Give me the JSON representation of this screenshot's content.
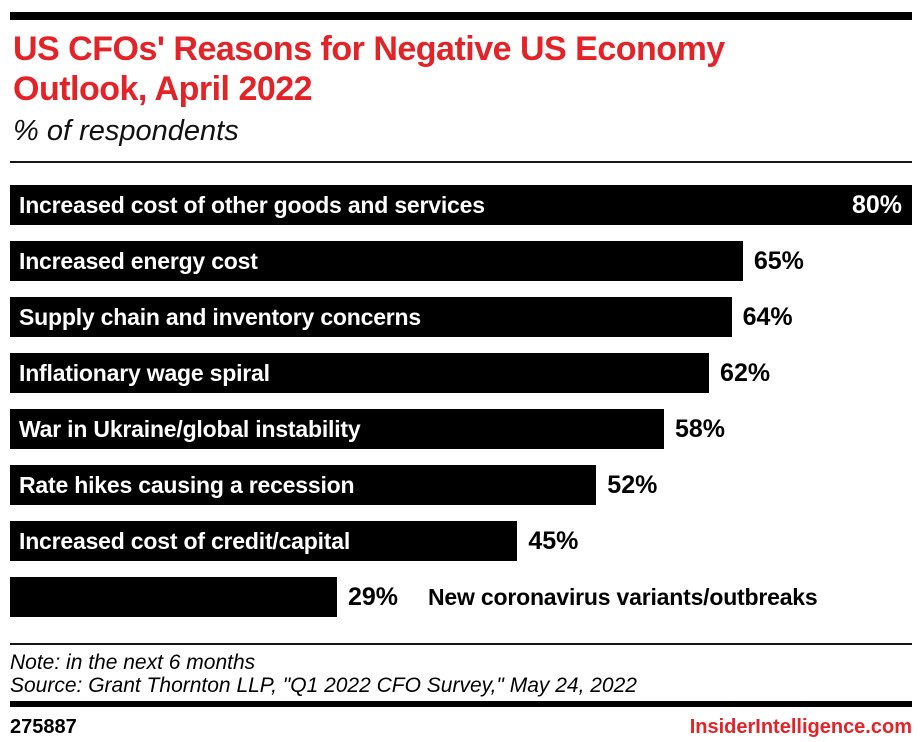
{
  "colors": {
    "accent_red": "#e42328",
    "bar_black": "#000000",
    "bar_label_white": "#ffffff",
    "background": "#ffffff"
  },
  "header": {
    "title_lines": [
      "US CFOs' Reasons for Negative US Economy",
      "Outlook, April 2022"
    ],
    "subtitle": "% of respondents"
  },
  "chart_data": {
    "type": "bar",
    "orientation": "horizontal",
    "title": "US CFOs' Reasons for Negative US Economy Outlook, April 2022",
    "subtitle": "% of respondents",
    "unit": "%",
    "xlim": [
      0,
      80
    ],
    "grid": false,
    "legend": "none",
    "bar_color": "#000000",
    "categories": [
      "Increased cost of other goods and services",
      "Increased energy cost",
      "Supply chain and inventory concerns",
      "Inflationary wage spiral",
      "War in Ukraine/global instability",
      "Rate hikes causing a recession",
      "Increased cost of credit/capital",
      "New coronavirus variants/outbreaks"
    ],
    "values": [
      80,
      65,
      64,
      62,
      58,
      52,
      45,
      29
    ],
    "value_labels": [
      "80%",
      "65%",
      "64%",
      "62%",
      "58%",
      "52%",
      "45%",
      "29%"
    ],
    "value_label_placement": [
      "inside",
      "outside",
      "outside",
      "outside",
      "outside",
      "outside",
      "outside",
      "outside"
    ],
    "category_label_placement": [
      "inside",
      "inside",
      "inside",
      "inside",
      "inside",
      "inside",
      "inside",
      "outside"
    ]
  },
  "footer": {
    "note": "Note: in the next 6 months",
    "source": "Source: Grant Thornton LLP, \"Q1 2022 CFO Survey,\" May 24, 2022",
    "chart_id": "275887",
    "site": "InsiderIntelligence.com"
  }
}
